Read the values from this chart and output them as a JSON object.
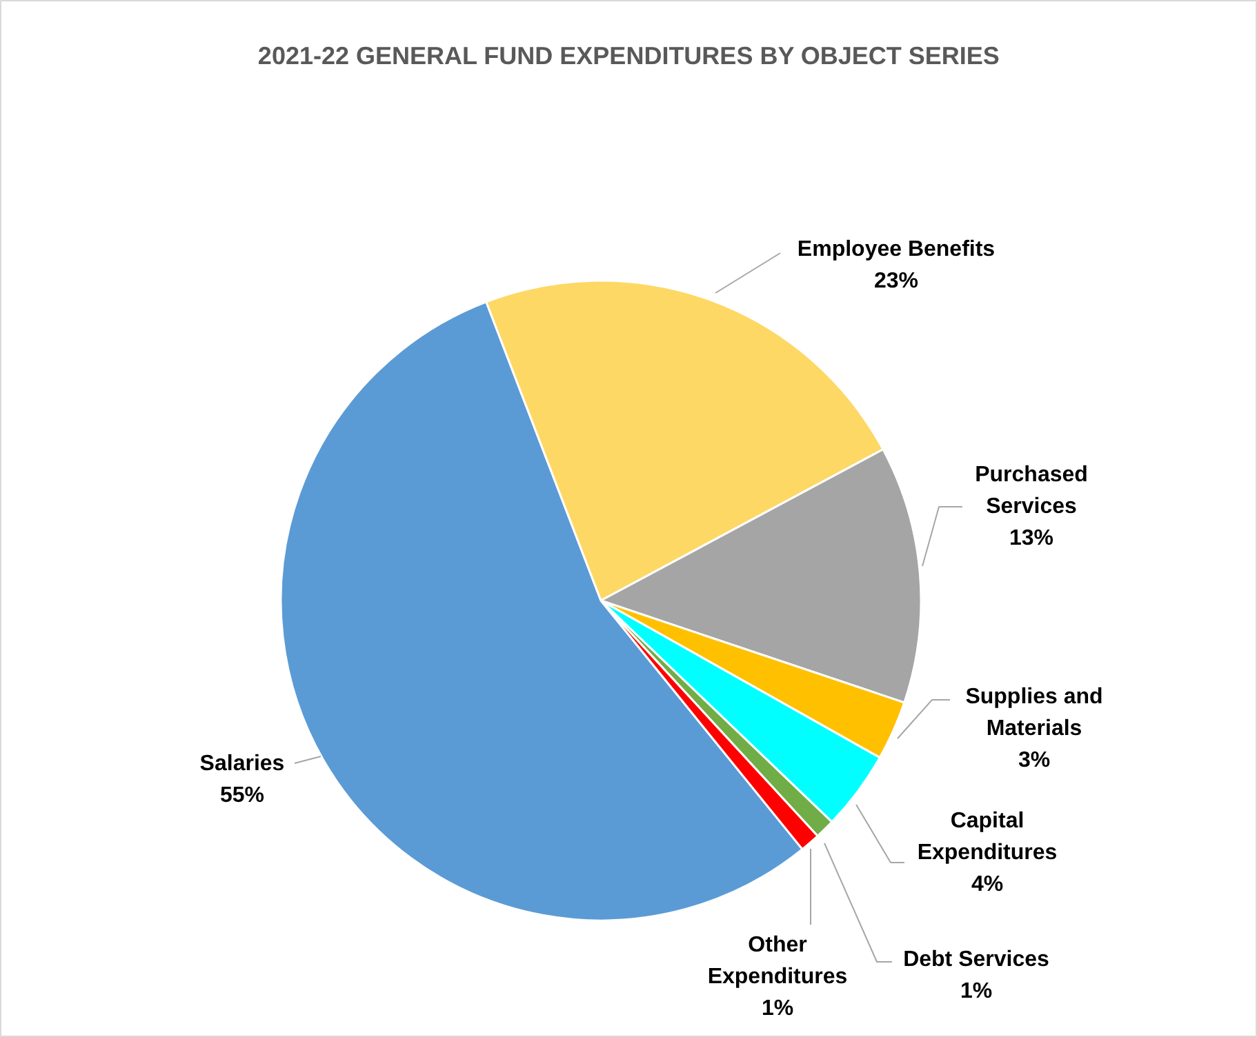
{
  "chart_data": {
    "type": "pie",
    "title": "2021-22 GENERAL FUND EXPENDITURES BY OBJECT SERIES",
    "categories": [
      "Salaries",
      "Employee Benefits",
      "Purchased Services",
      "Supplies and Materials",
      "Capital Expenditures",
      "Debt Services",
      "Other Expenditures"
    ],
    "values": [
      55,
      23,
      13,
      3,
      4,
      1,
      1
    ],
    "colors": [
      "#5b9bd5",
      "#fdd865",
      "#a5a5a5",
      "#ffc000",
      "#00ffff",
      "#70ad47",
      "#ff0000"
    ],
    "value_labels": [
      "55%",
      "23%",
      "13%",
      "3%",
      "4%",
      "1%",
      "1%"
    ]
  }
}
